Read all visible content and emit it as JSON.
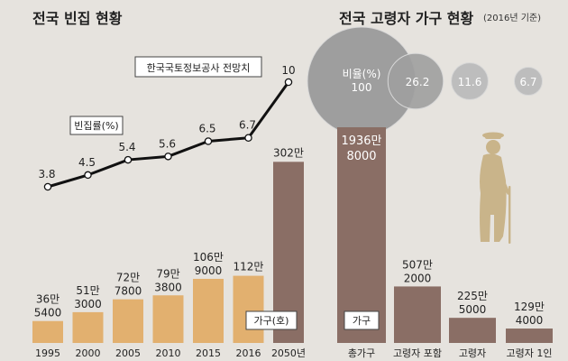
{
  "left_chart": {
    "title": "전국 빈집 현황",
    "rate_label": "빈집률(%)",
    "projection_label": "한국국토정보공사 전망치",
    "households_label": "가구(호)",
    "chart_data": {
      "type": "bar",
      "title": "전국 빈집 현황",
      "categories": [
        "1995",
        "2000",
        "2005",
        "2010",
        "2015",
        "2016",
        "2050년"
      ],
      "series": [
        {
          "name": "가구(호)",
          "values": [
            365400,
            513000,
            727800,
            793800,
            1069000,
            1120000,
            3020000
          ]
        },
        {
          "name": "빈집률(%)",
          "type": "line",
          "values": [
            3.8,
            4.5,
            5.4,
            5.6,
            6.5,
            6.7,
            10
          ]
        }
      ],
      "bar_label_lines": [
        [
          "36만",
          "5400"
        ],
        [
          "51만",
          "3000"
        ],
        [
          "72만",
          "7800"
        ],
        [
          "79만",
          "3800"
        ],
        [
          "106만",
          "9000"
        ],
        [
          "112만",
          ""
        ],
        [
          "302만",
          ""
        ]
      ],
      "rate_labels": [
        "3.8",
        "4.5",
        "5.4",
        "5.6",
        "6.5",
        "6.7",
        "10"
      ],
      "ylim": [
        0,
        3100000
      ],
      "rate_ylim": [
        0,
        10.5
      ]
    }
  },
  "right_chart": {
    "title": "전국 고령자 가구 현황",
    "subtitle": "(2016년 기준)",
    "households_label": "가구",
    "chart_data": {
      "type": "bar",
      "title": "전국 고령자 가구 현황",
      "categories": [
        "총가구",
        "고령자 포함",
        "고령자",
        "고령자 1인"
      ],
      "values": [
        19368000,
        5072000,
        2255000,
        1294000
      ],
      "bar_label_lines": [
        [
          "1936만",
          "8000"
        ],
        [
          "507만",
          "2000"
        ],
        [
          "225만",
          "5000"
        ],
        [
          "129만",
          "4000"
        ]
      ],
      "ratio_title": "비율(%)",
      "ratios": [
        100,
        26.2,
        11.6,
        6.7
      ],
      "ratio_labels": [
        "100",
        "26.2",
        "11.6",
        "6.7"
      ],
      "ylim": [
        0,
        19368000
      ]
    }
  },
  "colors": {
    "background": "#e6e3de",
    "bar_left": "#e2b06f",
    "bar_projection": "#8a6e65",
    "bar_right": "#8a6e65",
    "circle_fill": "#9e9e9e",
    "circle_stroke": "#d8d8d8",
    "figure": "#c9b48a",
    "line": "#111111"
  }
}
